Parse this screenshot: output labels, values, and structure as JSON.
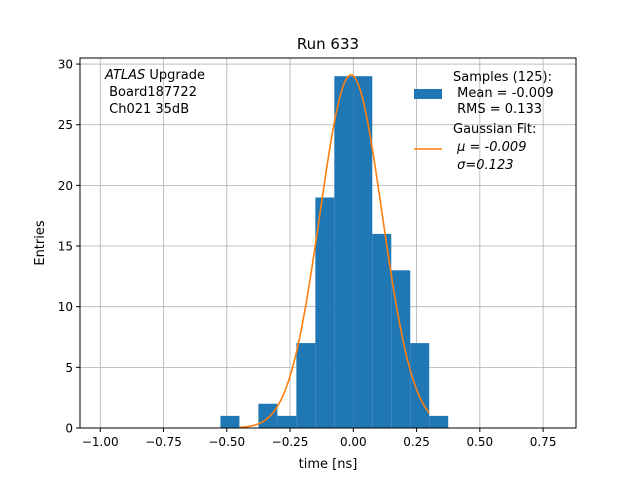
{
  "chart_data": {
    "type": "bar",
    "title": "Run 633",
    "xlabel": "time [ns]",
    "ylabel": "Entries",
    "xlim": [
      -1.08,
      0.88
    ],
    "ylim": [
      0,
      30.5
    ],
    "xticks": [
      -1.0,
      -0.75,
      -0.5,
      -0.25,
      0.0,
      0.25,
      0.5,
      0.75
    ],
    "xtick_labels": [
      "−1.00",
      "−0.75",
      "−0.50",
      "−0.25",
      "0.00",
      "0.25",
      "0.50",
      "0.75"
    ],
    "yticks": [
      0,
      5,
      10,
      15,
      20,
      25,
      30
    ],
    "ytick_labels": [
      "0",
      "5",
      "10",
      "15",
      "20",
      "25",
      "30"
    ],
    "grid": true,
    "legend_position": "top-right",
    "annotation": {
      "italic_part": "ATLAS",
      "line1_rest": " Upgrade",
      "line2": " Board187722",
      "line3": " Ch021 35dB"
    },
    "histogram": {
      "name": "Samples (125):",
      "color": "#1f77b4",
      "bin_edges": [
        -0.525,
        -0.45,
        -0.375,
        -0.3,
        -0.225,
        -0.15,
        -0.075,
        0.0,
        0.075,
        0.15,
        0.225,
        0.3,
        0.375
      ],
      "counts": [
        1,
        0,
        2,
        1,
        7,
        19,
        29,
        29,
        16,
        13,
        7,
        1
      ],
      "legend_lines": [
        "Samples (125):",
        " Mean = -0.009",
        " RMS = 0.133"
      ]
    },
    "fit": {
      "name": "Gaussian Fit:",
      "color": "#ff7f0e",
      "mu": -0.009,
      "sigma": 0.123,
      "amplitude": 29.1,
      "x_range": [
        -0.45,
        0.3
      ],
      "legend_lines": [
        "Gaussian Fit:",
        " μ = -0.009",
        " σ=0.123"
      ]
    }
  }
}
